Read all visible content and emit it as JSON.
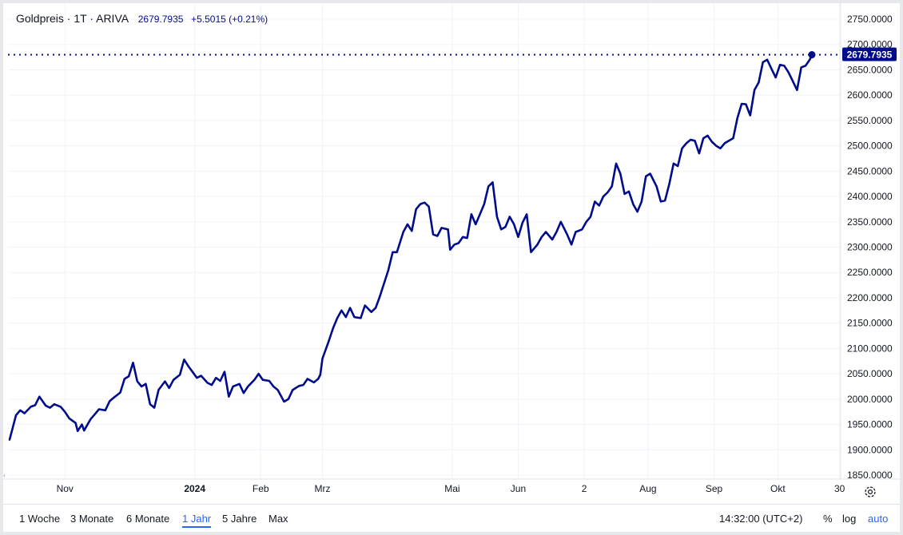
{
  "header": {
    "symbol": "Goldpreis · 1T · ARIVA",
    "last_price": "2679.7935",
    "change": "+5.5015 (+0.21%)"
  },
  "colors": {
    "line": "#000c8c",
    "grid": "#f0f3fa",
    "accent": "#2962ff"
  },
  "chart_data": {
    "type": "line",
    "price_label": "2679.7935",
    "last_value": 2679.7935,
    "ylim": [
      1830,
      2760
    ],
    "yticks": [
      1850,
      1900,
      1950,
      2000,
      2050,
      2100,
      2150,
      2200,
      2250,
      2300,
      2350,
      2400,
      2450,
      2500,
      2550,
      2600,
      2650,
      2700,
      2750
    ],
    "ytick_labels": [
      "1850.0000",
      "1900.0000",
      "1950.0000",
      "2000.0000",
      "2050.0000",
      "2100.0000",
      "2150.0000",
      "2200.0000",
      "2250.0000",
      "2300.0000",
      "2350.0000",
      "2400.0000",
      "2450.0000",
      "2500.0000",
      "2550.0000",
      "2600.0000",
      "2650.0000",
      "2700.0000",
      "2750.0000"
    ],
    "x_start": "2023-10-06",
    "x_end": "2024-10-17",
    "xticks": [
      {
        "date": "2023-11-01",
        "label": "Nov",
        "bold": false
      },
      {
        "date": "2024-01-01",
        "label": "2024",
        "bold": true
      },
      {
        "date": "2024-02-01",
        "label": "Feb",
        "bold": false
      },
      {
        "date": "2024-03-01",
        "label": "Mrz",
        "bold": false
      },
      {
        "date": "2024-05-01",
        "label": "Mai",
        "bold": false
      },
      {
        "date": "2024-06-01",
        "label": "Jun",
        "bold": false
      },
      {
        "date": "2024-07-02",
        "label": "2",
        "bold": false
      },
      {
        "date": "2024-08-01",
        "label": "Aug",
        "bold": false
      },
      {
        "date": "2024-09-01",
        "label": "Sep",
        "bold": false
      },
      {
        "date": "2024-10-01",
        "label": "Okt",
        "bold": false
      },
      {
        "date": "2024-10-30",
        "label": "30",
        "bold": false
      }
    ],
    "series": [
      {
        "points": [
          [
            "2023-10-06",
            1920
          ],
          [
            "2023-10-09",
            1968
          ],
          [
            "2023-10-11",
            1978
          ],
          [
            "2023-10-13",
            1972
          ],
          [
            "2023-10-16",
            1985
          ],
          [
            "2023-10-18",
            1988
          ],
          [
            "2023-10-20",
            2005
          ],
          [
            "2023-10-23",
            1987
          ],
          [
            "2023-10-25",
            1983
          ],
          [
            "2023-10-27",
            1990
          ],
          [
            "2023-10-30",
            1985
          ],
          [
            "2023-11-01",
            1975
          ],
          [
            "2023-11-03",
            1962
          ],
          [
            "2023-11-06",
            1953
          ],
          [
            "2023-11-07",
            1937
          ],
          [
            "2023-11-09",
            1950
          ],
          [
            "2023-11-10",
            1938
          ],
          [
            "2023-11-13",
            1960
          ],
          [
            "2023-11-15",
            1970
          ],
          [
            "2023-11-17",
            1980
          ],
          [
            "2023-11-20",
            1978
          ],
          [
            "2023-11-22",
            1996
          ],
          [
            "2023-11-24",
            2003
          ],
          [
            "2023-11-27",
            2013
          ],
          [
            "2023-11-29",
            2040
          ],
          [
            "2023-12-01",
            2045
          ],
          [
            "2023-12-03",
            2072
          ],
          [
            "2023-12-05",
            2035
          ],
          [
            "2023-12-07",
            2025
          ],
          [
            "2023-12-09",
            2030
          ],
          [
            "2023-12-11",
            1990
          ],
          [
            "2023-12-13",
            1983
          ],
          [
            "2023-12-15",
            2018
          ],
          [
            "2023-12-18",
            2035
          ],
          [
            "2023-12-20",
            2022
          ],
          [
            "2023-12-22",
            2038
          ],
          [
            "2023-12-25",
            2048
          ],
          [
            "2023-12-27",
            2078
          ],
          [
            "2023-12-29",
            2065
          ],
          [
            "2024-01-02",
            2042
          ],
          [
            "2024-01-04",
            2046
          ],
          [
            "2024-01-07",
            2032
          ],
          [
            "2024-01-09",
            2028
          ],
          [
            "2024-01-11",
            2042
          ],
          [
            "2024-01-13",
            2036
          ],
          [
            "2024-01-15",
            2054
          ],
          [
            "2024-01-17",
            2005
          ],
          [
            "2024-01-19",
            2025
          ],
          [
            "2024-01-22",
            2030
          ],
          [
            "2024-01-24",
            2012
          ],
          [
            "2024-01-26",
            2025
          ],
          [
            "2024-01-29",
            2038
          ],
          [
            "2024-01-31",
            2050
          ],
          [
            "2024-02-02",
            2038
          ],
          [
            "2024-02-05",
            2036
          ],
          [
            "2024-02-07",
            2025
          ],
          [
            "2024-02-09",
            2018
          ],
          [
            "2024-02-12",
            1995
          ],
          [
            "2024-02-14",
            2000
          ],
          [
            "2024-02-16",
            2018
          ],
          [
            "2024-02-19",
            2026
          ],
          [
            "2024-02-21",
            2028
          ],
          [
            "2024-02-23",
            2040
          ],
          [
            "2024-02-26",
            2033
          ],
          [
            "2024-02-28",
            2040
          ],
          [
            "2024-02-29",
            2048
          ],
          [
            "2024-03-01",
            2080
          ],
          [
            "2024-03-04",
            2115
          ],
          [
            "2024-03-06",
            2140
          ],
          [
            "2024-03-08",
            2160
          ],
          [
            "2024-03-10",
            2175
          ],
          [
            "2024-03-12",
            2162
          ],
          [
            "2024-03-14",
            2180
          ],
          [
            "2024-03-16",
            2162
          ],
          [
            "2024-03-19",
            2160
          ],
          [
            "2024-03-21",
            2185
          ],
          [
            "2024-03-24",
            2172
          ],
          [
            "2024-03-26",
            2180
          ],
          [
            "2024-03-28",
            2203
          ],
          [
            "2024-04-01",
            2255
          ],
          [
            "2024-04-03",
            2290
          ],
          [
            "2024-04-05",
            2290
          ],
          [
            "2024-04-08",
            2330
          ],
          [
            "2024-04-10",
            2345
          ],
          [
            "2024-04-12",
            2332
          ],
          [
            "2024-04-14",
            2375
          ],
          [
            "2024-04-16",
            2385
          ],
          [
            "2024-04-18",
            2388
          ],
          [
            "2024-04-20",
            2380
          ],
          [
            "2024-04-22",
            2325
          ],
          [
            "2024-04-24",
            2322
          ],
          [
            "2024-04-26",
            2338
          ],
          [
            "2024-04-29",
            2335
          ],
          [
            "2024-04-30",
            2295
          ],
          [
            "2024-05-02",
            2305
          ],
          [
            "2024-05-04",
            2308
          ],
          [
            "2024-05-06",
            2320
          ],
          [
            "2024-05-08",
            2318
          ],
          [
            "2024-05-10",
            2365
          ],
          [
            "2024-05-12",
            2345
          ],
          [
            "2024-05-14",
            2365
          ],
          [
            "2024-05-16",
            2385
          ],
          [
            "2024-05-18",
            2420
          ],
          [
            "2024-05-20",
            2428
          ],
          [
            "2024-05-22",
            2360
          ],
          [
            "2024-05-24",
            2335
          ],
          [
            "2024-05-26",
            2340
          ],
          [
            "2024-05-28",
            2360
          ],
          [
            "2024-05-30",
            2345
          ],
          [
            "2024-06-01",
            2320
          ],
          [
            "2024-06-03",
            2348
          ],
          [
            "2024-06-05",
            2365
          ],
          [
            "2024-06-07",
            2290
          ],
          [
            "2024-06-10",
            2305
          ],
          [
            "2024-06-12",
            2320
          ],
          [
            "2024-06-14",
            2330
          ],
          [
            "2024-06-17",
            2315
          ],
          [
            "2024-06-19",
            2330
          ],
          [
            "2024-06-21",
            2350
          ],
          [
            "2024-06-24",
            2325
          ],
          [
            "2024-06-26",
            2305
          ],
          [
            "2024-06-28",
            2330
          ],
          [
            "2024-07-01",
            2335
          ],
          [
            "2024-07-03",
            2350
          ],
          [
            "2024-07-05",
            2360
          ],
          [
            "2024-07-07",
            2390
          ],
          [
            "2024-07-09",
            2382
          ],
          [
            "2024-07-11",
            2400
          ],
          [
            "2024-07-13",
            2408
          ],
          [
            "2024-07-15",
            2420
          ],
          [
            "2024-07-17",
            2465
          ],
          [
            "2024-07-19",
            2445
          ],
          [
            "2024-07-21",
            2405
          ],
          [
            "2024-07-23",
            2410
          ],
          [
            "2024-07-25",
            2385
          ],
          [
            "2024-07-27",
            2370
          ],
          [
            "2024-07-29",
            2390
          ],
          [
            "2024-07-31",
            2440
          ],
          [
            "2024-08-02",
            2445
          ],
          [
            "2024-08-05",
            2420
          ],
          [
            "2024-08-07",
            2390
          ],
          [
            "2024-08-09",
            2392
          ],
          [
            "2024-08-11",
            2425
          ],
          [
            "2024-08-13",
            2465
          ],
          [
            "2024-08-15",
            2460
          ],
          [
            "2024-08-17",
            2495
          ],
          [
            "2024-08-19",
            2505
          ],
          [
            "2024-08-21",
            2512
          ],
          [
            "2024-08-23",
            2510
          ],
          [
            "2024-08-25",
            2485
          ],
          [
            "2024-08-27",
            2515
          ],
          [
            "2024-08-29",
            2520
          ],
          [
            "2024-08-31",
            2508
          ],
          [
            "2024-09-02",
            2500
          ],
          [
            "2024-09-04",
            2495
          ],
          [
            "2024-09-06",
            2505
          ],
          [
            "2024-09-08",
            2510
          ],
          [
            "2024-09-10",
            2515
          ],
          [
            "2024-09-12",
            2555
          ],
          [
            "2024-09-14",
            2583
          ],
          [
            "2024-09-16",
            2582
          ],
          [
            "2024-09-18",
            2560
          ],
          [
            "2024-09-20",
            2610
          ],
          [
            "2024-09-22",
            2625
          ],
          [
            "2024-09-24",
            2665
          ],
          [
            "2024-09-26",
            2670
          ],
          [
            "2024-09-28",
            2652
          ],
          [
            "2024-09-30",
            2635
          ],
          [
            "2024-10-02",
            2660
          ],
          [
            "2024-10-04",
            2658
          ],
          [
            "2024-10-06",
            2645
          ],
          [
            "2024-10-08",
            2628
          ],
          [
            "2024-10-10",
            2610
          ],
          [
            "2024-10-12",
            2655
          ],
          [
            "2024-10-14",
            2658
          ],
          [
            "2024-10-16",
            2670
          ],
          [
            "2024-10-17",
            2679.7935
          ]
        ]
      }
    ]
  },
  "axis": {
    "settings_icon": "gear-icon",
    "collapse_icon": "chevron-left-icon"
  },
  "bottom_bar": {
    "ranges": [
      {
        "label": "1 Woche",
        "active": false
      },
      {
        "label": "3 Monate",
        "active": false
      },
      {
        "label": "6 Monate",
        "active": false
      },
      {
        "label": "1 Jahr",
        "active": true
      },
      {
        "label": "5 Jahre",
        "active": false
      },
      {
        "label": "Max",
        "active": false
      }
    ],
    "time": "14:32:00 (UTC+2)",
    "percent_label": "%",
    "log_label": "log",
    "auto_label": "auto"
  }
}
